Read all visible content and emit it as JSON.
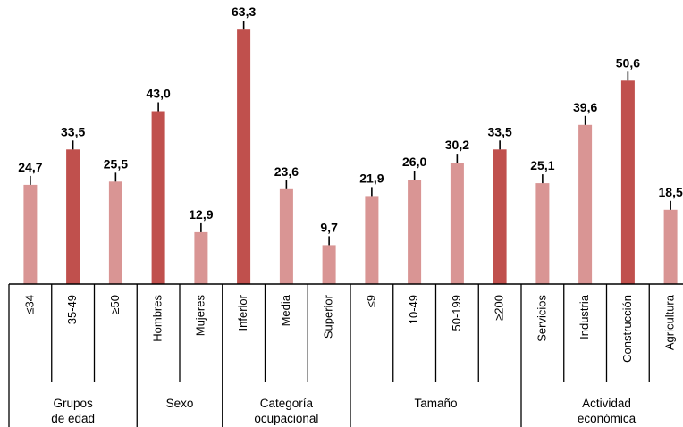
{
  "chart_data": {
    "type": "bar",
    "ylim": [
      0,
      66
    ],
    "grid": false,
    "colors": {
      "normal": "#d99594",
      "highlight": "#c0504d"
    },
    "categories": [
      "≤34",
      "35-49",
      "≥50",
      "Hombres",
      "Mujeres",
      "Inferior",
      "Media",
      "Superior",
      "≤9",
      "10-49",
      "50-199",
      "≥200",
      "Servicios",
      "Industria",
      "Construcción",
      "Agricultura"
    ],
    "values": [
      24.7,
      33.5,
      25.5,
      43.0,
      12.9,
      63.3,
      23.6,
      9.7,
      21.9,
      26.0,
      30.2,
      33.5,
      25.1,
      39.6,
      50.6,
      18.5
    ],
    "value_labels": [
      "24,7",
      "33,5",
      "25,5",
      "43,0",
      "12,9",
      "63,3",
      "23,6",
      "9,7",
      "21,9",
      "26,0",
      "30,2",
      "33,5",
      "25,1",
      "39,6",
      "50,6",
      "18,5"
    ],
    "highlighted": [
      false,
      true,
      false,
      true,
      false,
      true,
      false,
      false,
      false,
      false,
      false,
      true,
      false,
      false,
      true,
      false
    ],
    "groups": [
      {
        "lines": [
          "Grupos",
          "de edad"
        ],
        "start": 0,
        "end": 2
      },
      {
        "lines": [
          "Sexo"
        ],
        "start": 3,
        "end": 4
      },
      {
        "lines": [
          "Categoría",
          "ocupacional"
        ],
        "start": 5,
        "end": 7
      },
      {
        "lines": [
          "Tamaño"
        ],
        "start": 8,
        "end": 11
      },
      {
        "lines": [
          "Actividad",
          "económica"
        ],
        "start": 12,
        "end": 15
      }
    ]
  }
}
